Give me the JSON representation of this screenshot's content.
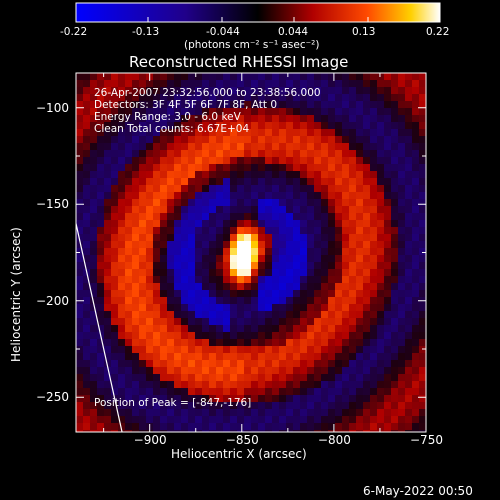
{
  "colorbar": {
    "ticks": [
      "-0.22",
      "-0.13",
      "-0.044",
      "0.044",
      "0.13",
      "0.22"
    ],
    "unit_label": "(photons cm⁻² s⁻¹ asec⁻²)"
  },
  "title": "Reconstructed RHESSI Image",
  "annotations": {
    "line1": "26-Apr-2007 23:32:56.000 to 23:38:56.000",
    "line2": "Detectors: 3F 4F 5F 6F 7F 8F, Att 0",
    "line3": "Energy Range: 3.0 - 6.0 keV",
    "line4": "Clean     Total counts: 6.67E+04",
    "peak": "Position of Peak = [-847,-176]"
  },
  "footer_timestamp": "6-May-2022 00:50",
  "chart_data": {
    "type": "heatmap",
    "title": "Reconstructed RHESSI Image",
    "xlabel": "Heliocentric X (arcsec)",
    "ylabel": "Heliocentric Y (arcsec)",
    "xlim": [
      -940,
      -750
    ],
    "ylim": [
      -268,
      -82
    ],
    "x_ticks": [
      -900,
      -850,
      -800,
      -750
    ],
    "y_ticks": [
      -250,
      -200,
      -150,
      -100
    ],
    "x_tick_labels": [
      "−900",
      "−850",
      "−800",
      "−750"
    ],
    "y_tick_labels": [
      "−250",
      "−200",
      "−150",
      "−100"
    ],
    "colorbar_range": [
      -0.22,
      0.22
    ],
    "peak_position": [
      -847,
      -176
    ],
    "source_center": [
      -847,
      -176
    ],
    "limb_line": [
      [
        -940,
        -160
      ],
      [
        -915,
        -268
      ]
    ],
    "grid": false,
    "colormap": "blue-black-red-yellow-white"
  }
}
